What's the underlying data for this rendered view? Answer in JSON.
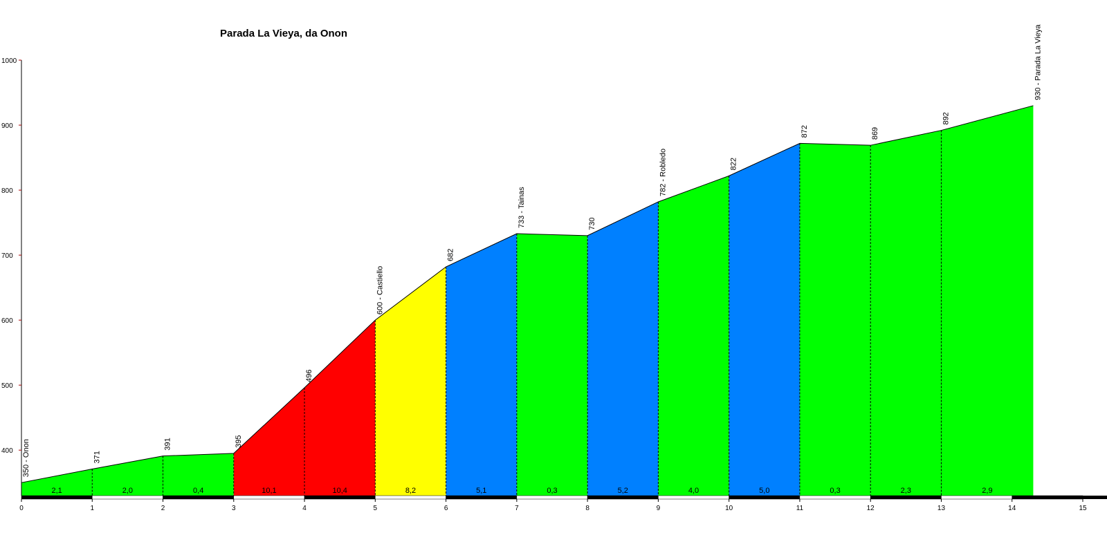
{
  "chart_data": {
    "type": "profile",
    "title": "Parada La Vieya, da Onon",
    "x": [
      0,
      1,
      2,
      3,
      4,
      5,
      6,
      7,
      8,
      9,
      10,
      11,
      12,
      13,
      14.3
    ],
    "values": [
      350,
      371,
      391,
      395,
      496,
      600,
      682,
      733,
      730,
      782,
      822,
      872,
      869,
      892,
      930
    ],
    "point_labels": [
      "350 - Onon",
      "371",
      "391",
      "395",
      "496",
      "600 - Castiello",
      "682",
      "733 - Tainas",
      "730",
      "782 - Robledo",
      "822",
      "872",
      "869",
      "892",
      "930 - Parada La Vieya"
    ],
    "gradients": {
      "values": [
        2.1,
        2.0,
        0.4,
        10.1,
        10.4,
        8.2,
        5.1,
        0.3,
        5.2,
        4.0,
        5.0,
        0.3,
        2.3,
        2.9
      ],
      "value_labels": [
        "2,1",
        "2,0",
        "0,4",
        "10,1",
        "10,4",
        "8,2",
        "5,1",
        "0,3",
        "5,2",
        "4,0",
        "5,0",
        "0,3",
        "2,3",
        "2,9"
      ]
    },
    "segment_colors": [
      "#00ff00",
      "#00ff00",
      "#00ff00",
      "#ff0000",
      "#ff0000",
      "#ffff00",
      "#0080ff",
      "#00ff00",
      "#0080ff",
      "#00ff00",
      "#0080ff",
      "#00ff00",
      "#00ff00",
      "#00ff00"
    ],
    "xlim": [
      0,
      15
    ],
    "xticks": [
      0,
      1,
      2,
      3,
      4,
      5,
      6,
      7,
      8,
      9,
      10,
      11,
      12,
      13,
      14,
      15
    ],
    "ylim": [
      330,
      1000
    ],
    "yticks": [
      400,
      500,
      600,
      700,
      800,
      900,
      1000
    ]
  }
}
